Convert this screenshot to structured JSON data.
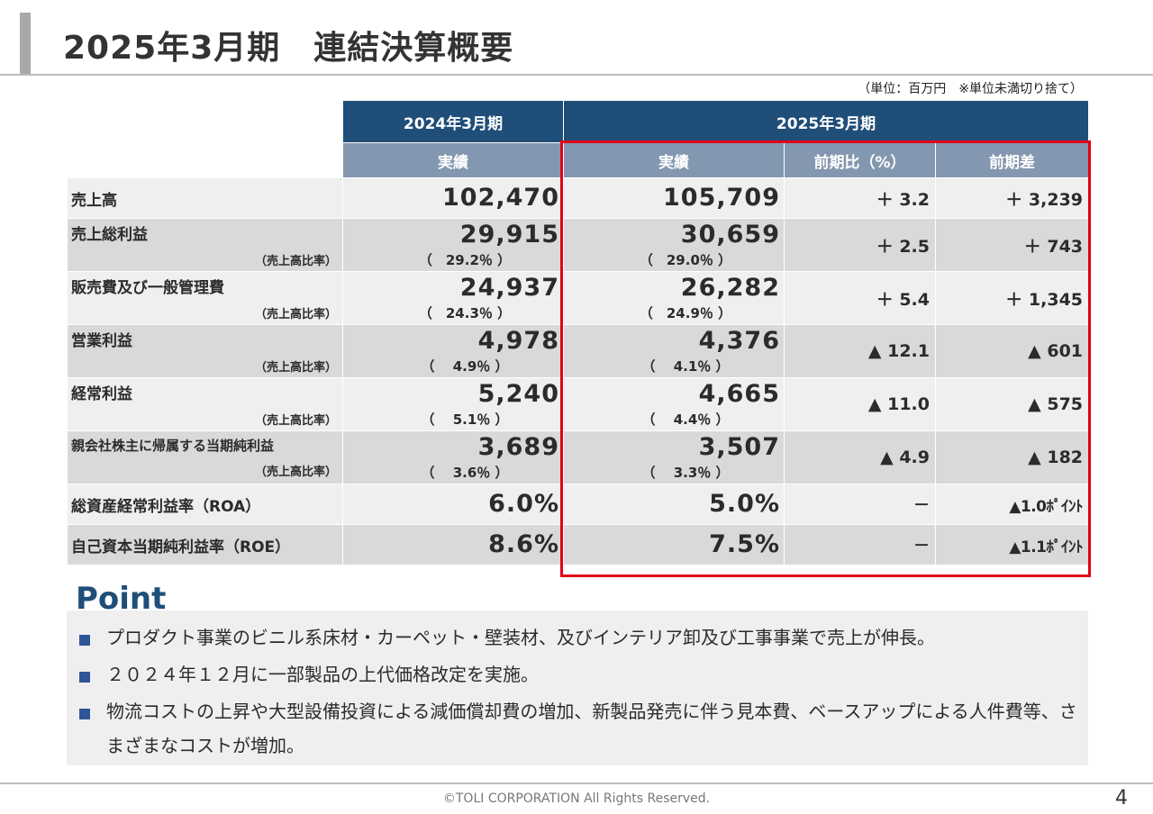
{
  "header": {
    "title": "2025年3月期　連結決算概要",
    "unit_note": "（単位：百万円　※単位未満切り捨て）"
  },
  "table": {
    "period_prev": "2024年3月期",
    "period_cur": "2025年3月期",
    "col_actual_prev": "実績",
    "col_actual_cur": "実績",
    "col_yoy_pct": "前期比（%）",
    "col_yoy_diff": "前期差",
    "ratio_label": "（売上高比率）",
    "rows": [
      {
        "label": "売上高",
        "prev": "102,470",
        "cur": "105,709",
        "pct": "＋ 3.2",
        "diff": "＋ 3,239"
      },
      {
        "label": "売上総利益",
        "prev": "29,915",
        "prev_ratio": "（　29.2％ ）",
        "cur": "30,659",
        "cur_ratio": "（　29.0％ ）",
        "pct": "＋ 2.5",
        "diff": "＋ 743"
      },
      {
        "label": "販売費及び一般管理費",
        "prev": "24,937",
        "prev_ratio": "（　24.3％ ）",
        "cur": "26,282",
        "cur_ratio": "（　24.9％ ）",
        "pct": "＋ 5.4",
        "diff": "＋ 1,345"
      },
      {
        "label": "営業利益",
        "prev": "4,978",
        "prev_ratio": "（　 4.9％ ）",
        "cur": "4,376",
        "cur_ratio": "（　 4.1％ ）",
        "pct": "▲ 12.1",
        "diff": "▲ 601"
      },
      {
        "label": "経常利益",
        "prev": "5,240",
        "prev_ratio": "（　 5.1％ ）",
        "cur": "4,665",
        "cur_ratio": "（　 4.4％ ）",
        "pct": "▲ 11.0",
        "diff": "▲ 575"
      },
      {
        "label": "親会社株主に帰属する当期純利益",
        "prev": "3,689",
        "prev_ratio": "（　 3.6％ ）",
        "cur": "3,507",
        "cur_ratio": "（　 3.3％ ）",
        "pct": "▲ 4.9",
        "diff": "▲ 182"
      },
      {
        "label": "総資産経常利益率（ROA）",
        "prev": "6.0%",
        "cur": "5.0%",
        "pct": "－",
        "diff": "▲1.0ﾎﾟｲﾝﾄ"
      },
      {
        "label": "自己資本当期純利益率（ROE）",
        "prev": "8.6%",
        "cur": "7.5%",
        "pct": "－",
        "diff": "▲1.1ﾎﾟｲﾝﾄ"
      }
    ]
  },
  "point": {
    "title": "Point",
    "bullets": [
      "プロダクト事業のビニル系床材・カーペット・壁装材、及びインテリア卸及び工事事業で売上が伸長。",
      "２０２４年１２月に一部製品の上代価格改定を実施。",
      "物流コストの上昇や大型設備投資による減価償却費の増加、新製品発売に伴う見本費、ベースアップによる人件費等、さまざまなコストが増加。"
    ]
  },
  "footer": {
    "copyright": "©TOLI CORPORATION All Rights Reserved.",
    "page": "4"
  }
}
